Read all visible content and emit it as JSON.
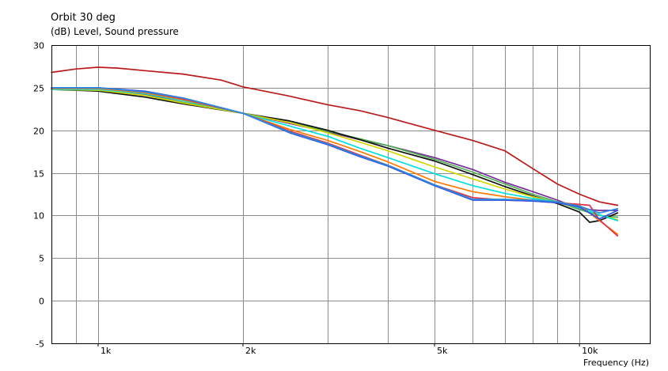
{
  "chart_data": {
    "type": "line",
    "title": "Orbit 30 deg",
    "ylabel": "(dB)  Level, Sound pressure",
    "xlabel": "Frequency  (Hz)",
    "x_scale": "log",
    "xlim": [
      800,
      14000
    ],
    "ylim": [
      -5,
      30
    ],
    "y_ticks": [
      -5,
      0,
      5,
      10,
      15,
      20,
      25,
      30
    ],
    "x_tick_labels": [
      {
        "value": 1000,
        "label": "1k"
      },
      {
        "value": 2000,
        "label": "2k"
      },
      {
        "value": 5000,
        "label": "5k"
      },
      {
        "value": 10000,
        "label": "10k"
      }
    ],
    "x_minor_gridlines": [
      800,
      900,
      3000,
      4000,
      6000,
      7000,
      8000,
      9000,
      20000
    ],
    "grid": true,
    "series": [
      {
        "color": "#bb1a1a",
        "x": [
          800,
          900,
          1000,
          1100,
          1250,
          1500,
          1800,
          2000,
          2500,
          3000,
          3500,
          4000,
          5000,
          6000,
          7000,
          8000,
          9000,
          10000,
          11000,
          12000
        ],
        "y": [
          26.8,
          27.2,
          27.4,
          27.3,
          27.0,
          26.6,
          25.9,
          25.1,
          24.0,
          23.0,
          22.3,
          21.5,
          20.0,
          18.8,
          17.6,
          15.5,
          13.7,
          12.5,
          11.6,
          11.2
        ]
      },
      {
        "color": "#7a2a9a",
        "x": [
          800,
          1000,
          1250,
          1500,
          2000,
          2500,
          3000,
          3500,
          4000,
          5000,
          6000,
          7000,
          8000,
          9000,
          10000,
          11000,
          12000
        ],
        "y": [
          24.9,
          24.8,
          24.2,
          23.5,
          22.0,
          20.8,
          19.8,
          18.9,
          18.2,
          16.8,
          15.4,
          13.9,
          12.8,
          11.8,
          10.8,
          10.6,
          10.6
        ]
      },
      {
        "color": "#4caf50",
        "x": [
          800,
          1000,
          1250,
          1500,
          2000,
          2500,
          3000,
          3500,
          4000,
          5000,
          6000,
          7000,
          8000,
          9000,
          10000,
          11000,
          12000
        ],
        "y": [
          24.9,
          24.7,
          24.1,
          23.3,
          22.0,
          20.9,
          19.9,
          19.0,
          18.2,
          16.6,
          15.1,
          13.7,
          12.5,
          11.6,
          10.7,
          10.0,
          9.8
        ]
      },
      {
        "color": "#111111",
        "x": [
          800,
          1000,
          1250,
          1500,
          2000,
          2500,
          3000,
          3500,
          4000,
          5000,
          6000,
          7000,
          8000,
          9000,
          10000,
          10500,
          11000,
          12000
        ],
        "y": [
          24.8,
          24.6,
          23.9,
          23.1,
          22.0,
          21.1,
          20.0,
          18.9,
          17.9,
          16.4,
          14.8,
          13.4,
          12.3,
          11.4,
          10.4,
          9.2,
          9.4,
          10.3
        ]
      },
      {
        "color": "#d4d400",
        "x": [
          800,
          1000,
          1250,
          1500,
          2000,
          2500,
          3000,
          3500,
          4000,
          5000,
          6000,
          7000,
          8000,
          9000,
          10000,
          11000,
          12000
        ],
        "y": [
          24.8,
          24.7,
          24.1,
          23.2,
          22.0,
          20.9,
          19.7,
          18.6,
          17.6,
          15.7,
          14.3,
          13.1,
          12.2,
          11.5,
          10.9,
          10.1,
          9.5
        ]
      },
      {
        "color": "#00e0e0",
        "x": [
          800,
          1000,
          1250,
          1500,
          2000,
          2500,
          3000,
          3500,
          4000,
          5000,
          6000,
          7000,
          8000,
          9000,
          10000,
          11000,
          12000
        ],
        "y": [
          24.8,
          24.8,
          24.3,
          23.5,
          22.0,
          20.5,
          19.3,
          17.9,
          16.8,
          14.9,
          13.5,
          12.6,
          12.0,
          11.6,
          10.9,
          10.1,
          9.4
        ]
      },
      {
        "color": "#ff7a00",
        "x": [
          800,
          1000,
          1250,
          1500,
          2000,
          2500,
          3000,
          3500,
          4000,
          5000,
          6000,
          7000,
          8000,
          9000,
          10000,
          11000,
          12000
        ],
        "y": [
          24.9,
          24.9,
          24.4,
          23.6,
          22.0,
          20.1,
          18.8,
          17.5,
          16.3,
          14.0,
          12.8,
          12.2,
          11.8,
          11.6,
          11.2,
          9.4,
          7.8
        ]
      },
      {
        "color": "#e0304a",
        "x": [
          800,
          1000,
          1250,
          1500,
          2000,
          2500,
          3000,
          3500,
          4000,
          5000,
          6000,
          7000,
          8000,
          9000,
          10000,
          10500,
          11000,
          12000
        ],
        "y": [
          25.0,
          25.0,
          24.5,
          23.7,
          22.0,
          19.9,
          18.5,
          17.1,
          15.9,
          13.6,
          12.1,
          11.8,
          11.7,
          11.5,
          11.3,
          11.2,
          9.5,
          7.6
        ]
      },
      {
        "color": "#2f4fe0",
        "x": [
          800,
          1000,
          1250,
          1500,
          2000,
          2500,
          3000,
          3500,
          4000,
          5000,
          6000,
          7000,
          8000,
          9000,
          10000,
          11000,
          12000
        ],
        "y": [
          25.0,
          25.0,
          24.6,
          23.8,
          22.0,
          19.7,
          18.3,
          16.9,
          15.8,
          13.5,
          11.8,
          11.8,
          11.7,
          11.5,
          11.0,
          9.6,
          10.6
        ]
      },
      {
        "color": "#2a8ae0",
        "x": [
          800,
          1000,
          1250,
          1500,
          2000,
          2500,
          3000,
          3500,
          4000,
          5000,
          6000,
          7000,
          8000,
          9000,
          10000,
          11000,
          12000
        ],
        "y": [
          25.0,
          25.0,
          24.5,
          23.8,
          22.0,
          19.8,
          18.4,
          17.0,
          15.9,
          13.6,
          11.9,
          11.9,
          11.8,
          11.6,
          11.1,
          10.3,
          10.8
        ]
      }
    ]
  }
}
